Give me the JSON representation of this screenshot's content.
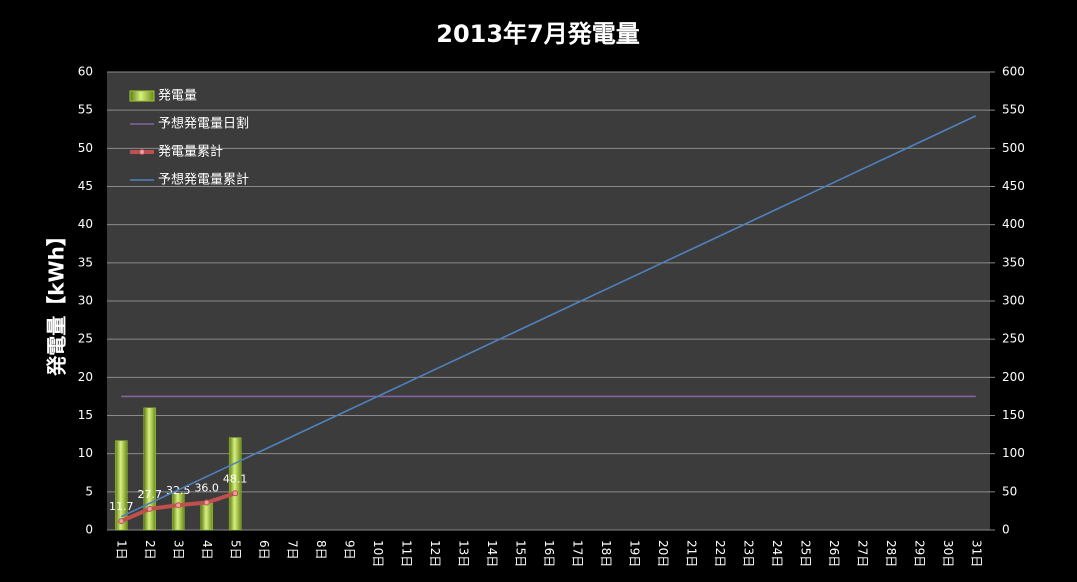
{
  "chart_data": {
    "type": "combo",
    "title": "2013年7月発電量",
    "y_label": "発電量【kWh】",
    "categories": [
      "1日",
      "2日",
      "3日",
      "4日",
      "5日",
      "6日",
      "7日",
      "8日",
      "9日",
      "10日",
      "11日",
      "12日",
      "13日",
      "14日",
      "15日",
      "16日",
      "17日",
      "18日",
      "19日",
      "20日",
      "21日",
      "22日",
      "23日",
      "24日",
      "25日",
      "26日",
      "27日",
      "28日",
      "29日",
      "30日",
      "31日"
    ],
    "ylim": [
      0,
      60
    ],
    "yticks": [
      0,
      5,
      10,
      15,
      20,
      25,
      30,
      35,
      40,
      45,
      50,
      55,
      60
    ],
    "y2lim": [
      0,
      600
    ],
    "y2ticks": [
      0,
      50,
      100,
      150,
      200,
      250,
      300,
      350,
      400,
      450,
      500,
      550,
      600
    ],
    "grid": true,
    "legend": "top-left",
    "series": [
      {
        "name": "発電量",
        "kind": "bar",
        "color": "#9acd32",
        "values": [
          11.7,
          16.0,
          4.8,
          3.5,
          12.1,
          null,
          null,
          null,
          null,
          null,
          null,
          null,
          null,
          null,
          null,
          null,
          null,
          null,
          null,
          null,
          null,
          null,
          null,
          null,
          null,
          null,
          null,
          null,
          null,
          null,
          null
        ]
      },
      {
        "name": "予想発電量日割",
        "kind": "line",
        "color": "#8064a2",
        "values": [
          17.5,
          17.5,
          17.5,
          17.5,
          17.5,
          17.5,
          17.5,
          17.5,
          17.5,
          17.5,
          17.5,
          17.5,
          17.5,
          17.5,
          17.5,
          17.5,
          17.5,
          17.5,
          17.5,
          17.5,
          17.5,
          17.5,
          17.5,
          17.5,
          17.5,
          17.5,
          17.5,
          17.5,
          17.5,
          17.5,
          17.5
        ]
      },
      {
        "name": "発電量累計",
        "kind": "line",
        "axis": "y2",
        "color": "#c0504d",
        "markers": true,
        "values": [
          11.7,
          27.7,
          32.5,
          36.0,
          48.1,
          null,
          null,
          null,
          null,
          null,
          null,
          null,
          null,
          null,
          null,
          null,
          null,
          null,
          null,
          null,
          null,
          null,
          null,
          null,
          null,
          null,
          null,
          null,
          null,
          null,
          null
        ],
        "value_labels": [
          "11.7",
          "27.7",
          "32.5",
          "36.0",
          "48.1",
          null,
          null,
          null,
          null,
          null,
          null,
          null,
          null,
          null,
          null,
          null,
          null,
          null,
          null,
          null,
          null,
          null,
          null,
          null,
          null,
          null,
          null,
          null,
          null,
          null,
          null
        ]
      },
      {
        "name": "予想発電量累計",
        "kind": "line",
        "axis": "y2",
        "color": "#4f81bd",
        "values": [
          17.5,
          35,
          52.5,
          70,
          87.5,
          105,
          122.5,
          140,
          157.5,
          175,
          192.5,
          210,
          227.5,
          245,
          262.5,
          280,
          297.5,
          315,
          332.5,
          350,
          367.5,
          385,
          402.5,
          420,
          437.5,
          455,
          472.5,
          490,
          507.5,
          525,
          542.5
        ]
      }
    ]
  }
}
